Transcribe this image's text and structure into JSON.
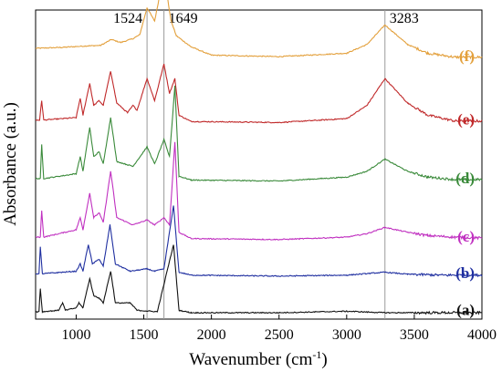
{
  "chart_data": {
    "type": "line",
    "xlabel": "Wavenumber (cm",
    "xlabel_sup": "-1",
    "xlabel_close": ")",
    "ylabel": "Absorbance (a.u.)",
    "xlim": [
      700,
      4000
    ],
    "xticks": [
      1000,
      1500,
      2000,
      2500,
      3000,
      3500,
      4000
    ],
    "y_tick_labels_shown": false,
    "grid": false,
    "reference_lines": [
      {
        "x": 1524,
        "label": "1524"
      },
      {
        "x": 1649,
        "label": "1649"
      },
      {
        "x": 3283,
        "label": "3283"
      }
    ],
    "series": [
      {
        "name": "(f)",
        "color": "#E3A03C",
        "offset": 5.2,
        "points": [
          [
            700,
            0.22
          ],
          [
            900,
            0.24
          ],
          [
            1080,
            0.27
          ],
          [
            1180,
            0.28
          ],
          [
            1260,
            0.4
          ],
          [
            1330,
            0.34
          ],
          [
            1420,
            0.42
          ],
          [
            1470,
            0.5
          ],
          [
            1524,
            1.05
          ],
          [
            1580,
            0.78
          ],
          [
            1649,
            1.75
          ],
          [
            1700,
            0.8
          ],
          [
            1740,
            0.48
          ],
          [
            1850,
            0.25
          ],
          [
            2000,
            0.08
          ],
          [
            2500,
            0.05
          ],
          [
            3000,
            0.12
          ],
          [
            3150,
            0.3
          ],
          [
            3283,
            0.7
          ],
          [
            3450,
            0.3
          ],
          [
            3600,
            0.12
          ],
          [
            3800,
            0.04
          ],
          [
            4000,
            0.04
          ]
        ]
      },
      {
        "name": "(e)",
        "color": "#C0292A",
        "offset": 3.9,
        "points": [
          [
            700,
            0.05
          ],
          [
            730,
            0.05
          ],
          [
            745,
            0.45
          ],
          [
            760,
            0.05
          ],
          [
            1000,
            0.1
          ],
          [
            1030,
            0.5
          ],
          [
            1050,
            0.15
          ],
          [
            1100,
            0.8
          ],
          [
            1130,
            0.35
          ],
          [
            1170,
            0.45
          ],
          [
            1200,
            0.35
          ],
          [
            1255,
            1.05
          ],
          [
            1300,
            0.4
          ],
          [
            1380,
            0.2
          ],
          [
            1420,
            0.35
          ],
          [
            1450,
            0.25
          ],
          [
            1524,
            0.9
          ],
          [
            1580,
            0.45
          ],
          [
            1649,
            1.2
          ],
          [
            1690,
            0.6
          ],
          [
            1730,
            0.9
          ],
          [
            1760,
            0.15
          ],
          [
            1850,
            0.02
          ],
          [
            2500,
            0.0
          ],
          [
            3000,
            0.08
          ],
          [
            3150,
            0.35
          ],
          [
            3283,
            0.9
          ],
          [
            3450,
            0.4
          ],
          [
            3600,
            0.15
          ],
          [
            3800,
            0.03
          ],
          [
            4000,
            0.03
          ]
        ]
      },
      {
        "name": "(d)",
        "color": "#3A8A3A",
        "offset": 2.7,
        "points": [
          [
            700,
            0.05
          ],
          [
            735,
            0.05
          ],
          [
            745,
            0.75
          ],
          [
            760,
            0.05
          ],
          [
            1000,
            0.15
          ],
          [
            1030,
            0.5
          ],
          [
            1050,
            0.2
          ],
          [
            1100,
            1.1
          ],
          [
            1130,
            0.5
          ],
          [
            1170,
            0.6
          ],
          [
            1200,
            0.35
          ],
          [
            1255,
            1.3
          ],
          [
            1300,
            0.4
          ],
          [
            1420,
            0.3
          ],
          [
            1524,
            0.7
          ],
          [
            1580,
            0.35
          ],
          [
            1649,
            0.85
          ],
          [
            1690,
            0.5
          ],
          [
            1730,
            1.95
          ],
          [
            1760,
            0.1
          ],
          [
            1850,
            0.02
          ],
          [
            2500,
            0.0
          ],
          [
            3000,
            0.08
          ],
          [
            3150,
            0.2
          ],
          [
            3283,
            0.45
          ],
          [
            3450,
            0.2
          ],
          [
            3600,
            0.08
          ],
          [
            3800,
            0.03
          ],
          [
            4000,
            0.03
          ]
        ]
      },
      {
        "name": "(c)",
        "color": "#C030C0",
        "offset": 1.5,
        "points": [
          [
            700,
            0.05
          ],
          [
            735,
            0.05
          ],
          [
            745,
            0.6
          ],
          [
            760,
            0.05
          ],
          [
            1000,
            0.2
          ],
          [
            1030,
            0.45
          ],
          [
            1050,
            0.2
          ],
          [
            1100,
            0.95
          ],
          [
            1130,
            0.45
          ],
          [
            1170,
            0.55
          ],
          [
            1200,
            0.35
          ],
          [
            1255,
            1.4
          ],
          [
            1300,
            0.45
          ],
          [
            1420,
            0.3
          ],
          [
            1524,
            0.4
          ],
          [
            1580,
            0.3
          ],
          [
            1649,
            0.45
          ],
          [
            1690,
            0.3
          ],
          [
            1730,
            2.0
          ],
          [
            1760,
            0.15
          ],
          [
            1850,
            0.02
          ],
          [
            2500,
            0.0
          ],
          [
            3000,
            0.05
          ],
          [
            3150,
            0.12
          ],
          [
            3283,
            0.25
          ],
          [
            3450,
            0.15
          ],
          [
            3600,
            0.08
          ],
          [
            3800,
            0.05
          ],
          [
            4000,
            0.03
          ]
        ]
      },
      {
        "name": "(b)",
        "color": "#1F2FA0",
        "offset": 0.75,
        "points": [
          [
            700,
            0.05
          ],
          [
            725,
            0.05
          ],
          [
            735,
            0.6
          ],
          [
            750,
            0.05
          ],
          [
            1000,
            0.1
          ],
          [
            1030,
            0.25
          ],
          [
            1050,
            0.1
          ],
          [
            1090,
            0.65
          ],
          [
            1120,
            0.25
          ],
          [
            1170,
            0.35
          ],
          [
            1200,
            0.2
          ],
          [
            1250,
            1.05
          ],
          [
            1290,
            0.25
          ],
          [
            1400,
            0.1
          ],
          [
            1524,
            0.15
          ],
          [
            1580,
            0.1
          ],
          [
            1649,
            0.15
          ],
          [
            1720,
            1.45
          ],
          [
            1760,
            0.08
          ],
          [
            1850,
            0.02
          ],
          [
            2500,
            0.0
          ],
          [
            3000,
            0.02
          ],
          [
            3283,
            0.08
          ],
          [
            3450,
            0.04
          ],
          [
            3700,
            0.02
          ],
          [
            4000,
            0.02
          ]
        ]
      },
      {
        "name": "(a)",
        "color": "#111111",
        "offset": 0.0,
        "points": [
          [
            700,
            0.02
          ],
          [
            725,
            0.02
          ],
          [
            735,
            0.5
          ],
          [
            750,
            0.02
          ],
          [
            870,
            0.05
          ],
          [
            900,
            0.2
          ],
          [
            920,
            0.05
          ],
          [
            1000,
            0.1
          ],
          [
            1020,
            0.2
          ],
          [
            1050,
            0.1
          ],
          [
            1100,
            0.7
          ],
          [
            1130,
            0.35
          ],
          [
            1170,
            0.3
          ],
          [
            1200,
            0.2
          ],
          [
            1255,
            0.85
          ],
          [
            1290,
            0.2
          ],
          [
            1400,
            0.2
          ],
          [
            1450,
            0.05
          ],
          [
            1600,
            0.02
          ],
          [
            1720,
            1.4
          ],
          [
            1760,
            0.05
          ],
          [
            1850,
            0.0
          ],
          [
            2500,
            0.0
          ],
          [
            3000,
            0.03
          ],
          [
            3283,
            0.0
          ],
          [
            4000,
            0.0
          ]
        ]
      }
    ]
  }
}
